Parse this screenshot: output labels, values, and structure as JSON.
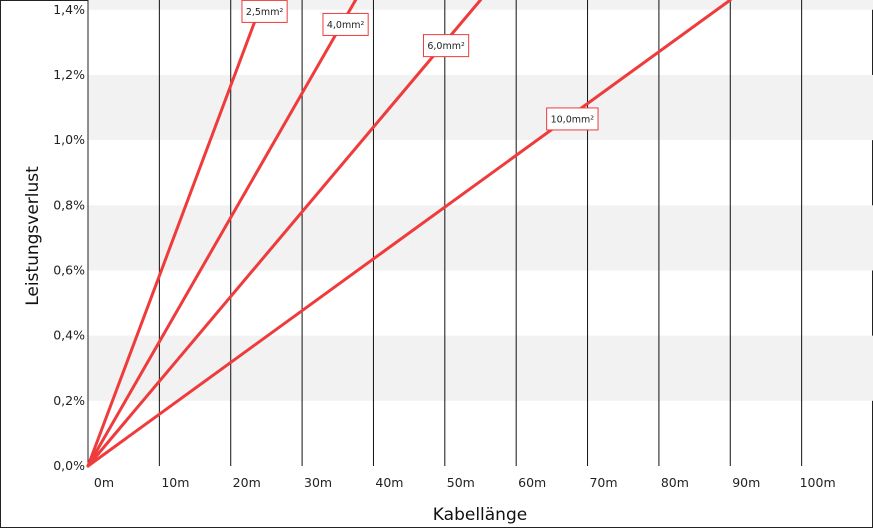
{
  "chart_data": {
    "type": "line",
    "xlabel": "Kabellänge",
    "ylabel": "Leistungsverlust",
    "x_ticks": [
      "0m",
      "10m",
      "20m",
      "30m",
      "40m",
      "50m",
      "60m",
      "70m",
      "80m",
      "90m",
      "100m"
    ],
    "y_ticks": [
      "0,0%",
      "0,2%",
      "0,4%",
      "0,6%",
      "0,8%",
      "1,0%",
      "1,2%",
      "1,4%"
    ],
    "xlim": [
      0,
      110
    ],
    "ylim": [
      0,
      1.43
    ],
    "grid": "vertical lines, alternating horizontal bands",
    "colors": {
      "series": "#ef3b3b",
      "band": "#f2f2f2",
      "grid": "#111111"
    },
    "series": [
      {
        "name": "2,5mm²",
        "x": [
          0,
          24.5
        ],
        "y": [
          0,
          1.43
        ]
      },
      {
        "name": "4,0mm²",
        "x": [
          0,
          37.5
        ],
        "y": [
          0,
          1.43
        ]
      },
      {
        "name": "6,0mm²",
        "x": [
          0,
          55
        ],
        "y": [
          0,
          1.43
        ]
      },
      {
        "name": "10,0mm²",
        "x": [
          0,
          90
        ],
        "y": [
          0,
          1.43
        ]
      }
    ]
  }
}
